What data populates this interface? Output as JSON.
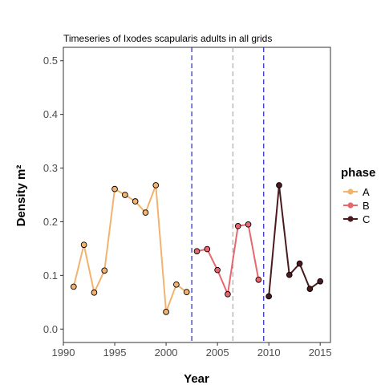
{
  "chart_data": {
    "type": "line",
    "title": "Timeseries of Ixodes scapularis adults in all grids",
    "xlabel": "Year",
    "ylabel": "Density m²",
    "xlim": [
      1990,
      2016
    ],
    "ylim": [
      -0.025,
      0.525
    ],
    "x_ticks": [
      1990,
      1995,
      2000,
      2005,
      2010,
      2015
    ],
    "y_ticks": [
      0.0,
      0.1,
      0.2,
      0.3,
      0.4,
      0.5
    ],
    "x_tick_labels": [
      "1990",
      "1995",
      "2000",
      "2005",
      "2010",
      "2015"
    ],
    "y_tick_labels": [
      "0.0",
      "0.1",
      "0.2",
      "0.3",
      "0.4",
      "0.5"
    ],
    "grid": false,
    "legend": {
      "title": "phase",
      "position": "right"
    },
    "vlines": [
      {
        "x": 2002.5,
        "color": "#2222cc",
        "style": "dashed"
      },
      {
        "x": 2006.5,
        "color": "#aaaaaa",
        "style": "dashed"
      },
      {
        "x": 2009.5,
        "color": "#2222cc",
        "style": "dashed"
      }
    ],
    "series": [
      {
        "name": "A",
        "color": "#F2B36E",
        "x": [
          1991,
          1992,
          1993,
          1994,
          1995,
          1996,
          1997,
          1998,
          1999,
          2000,
          2001,
          2002
        ],
        "y": [
          0.079,
          0.157,
          0.068,
          0.109,
          0.261,
          0.25,
          0.238,
          0.217,
          0.268,
          0.032,
          0.083,
          0.069
        ]
      },
      {
        "name": "B",
        "color": "#E8666E",
        "x": [
          2003,
          2004,
          2005,
          2006,
          2007,
          2008,
          2009
        ],
        "y": [
          0.145,
          0.149,
          0.11,
          0.065,
          0.192,
          0.195,
          0.092
        ]
      },
      {
        "name": "C",
        "color": "#4A1A1E",
        "x": [
          2010,
          2011,
          2012,
          2013,
          2014,
          2015
        ],
        "y": [
          0.061,
          0.268,
          0.101,
          0.122,
          0.075,
          0.089
        ]
      }
    ]
  }
}
